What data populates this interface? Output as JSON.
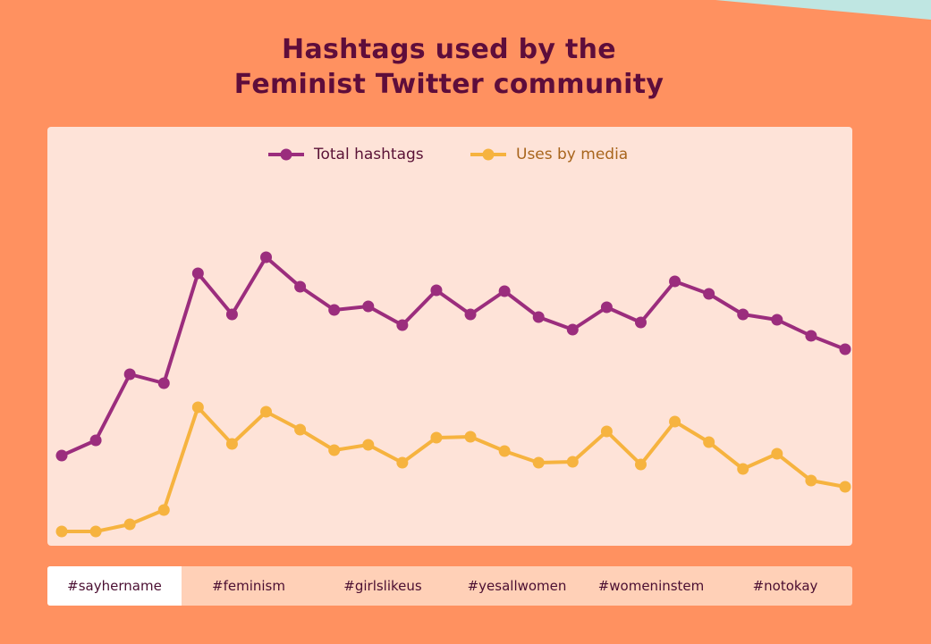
{
  "title_lines": [
    "Hashtags used by the",
    "Feminist Twitter community"
  ],
  "chart_data": {
    "type": "line",
    "ylim": [
      0,
      450
    ],
    "series": [
      {
        "name": "Total hashtags",
        "color": "#9b2d7d",
        "values": [
          101,
          118,
          192,
          182,
          305,
          259,
          323,
          290,
          264,
          268,
          247,
          286,
          259,
          285,
          256,
          242,
          267,
          250,
          296,
          282,
          259,
          253,
          235,
          220
        ]
      },
      {
        "name": "Uses by media",
        "color": "#f6b33f",
        "values": [
          16,
          16,
          24,
          40,
          155,
          114,
          150,
          130,
          107,
          113,
          93,
          121,
          122,
          106,
          93,
          94,
          128,
          91,
          139,
          116,
          86,
          103,
          73,
          66
        ]
      }
    ]
  },
  "tabs": {
    "items": [
      "#sayhername",
      "#feminism",
      "#girlslikeus",
      "#yesallwomen",
      "#womeninstem",
      "#notokay"
    ],
    "active": 0
  }
}
